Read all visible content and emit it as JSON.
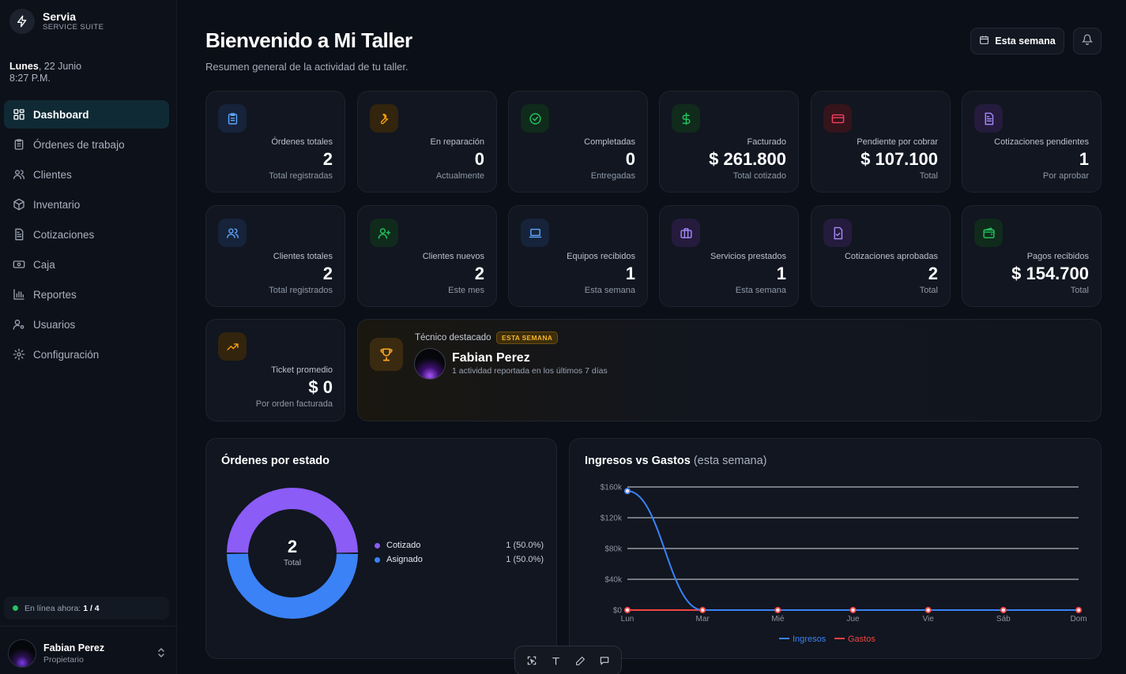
{
  "brand": {
    "name": "Servia",
    "subtitle": "SERVICE SUITE"
  },
  "date": {
    "day": "Lunes",
    "date": ", 22 Junio",
    "time": "8:27 P.M."
  },
  "nav": [
    {
      "label": "Dashboard",
      "icon": "grid-icon",
      "active": true
    },
    {
      "label": "Órdenes de trabajo",
      "icon": "clipboard-icon"
    },
    {
      "label": "Clientes",
      "icon": "users-icon"
    },
    {
      "label": "Inventario",
      "icon": "box-icon"
    },
    {
      "label": "Cotizaciones",
      "icon": "document-icon"
    },
    {
      "label": "Caja",
      "icon": "cash-icon"
    },
    {
      "label": "Reportes",
      "icon": "bar-chart-icon"
    },
    {
      "label": "Usuarios",
      "icon": "user-cog-icon"
    },
    {
      "label": "Configuración",
      "icon": "gear-icon"
    }
  ],
  "online": {
    "label": "En línea ahora:",
    "value": "1 / 4"
  },
  "user": {
    "name": "Fabian Perez",
    "role": "Propietario"
  },
  "header": {
    "title": "Bienvenido a Mi Taller",
    "subtitle": "Resumen general de la actividad de tu taller.",
    "week_button": "Esta semana"
  },
  "cards": [
    {
      "label": "Órdenes totales",
      "value": "2",
      "sub": "Total registradas",
      "icon": "clipboard-icon",
      "color": "#60a5fa",
      "bg": "#16233a"
    },
    {
      "label": "En reparación",
      "value": "0",
      "sub": "Actualmente",
      "icon": "wrench-icon",
      "color": "#f59e0b",
      "bg": "#33240e"
    },
    {
      "label": "Completadas",
      "value": "0",
      "sub": "Entregadas",
      "icon": "check-circle-icon",
      "color": "#22c55e",
      "bg": "#102a1c"
    },
    {
      "label": "Facturado",
      "value": "$ 261.800",
      "sub": "Total cotizado",
      "icon": "dollar-icon",
      "color": "#22c55e",
      "bg": "#102a1c"
    },
    {
      "label": "Pendiente por cobrar",
      "value": "$ 107.100",
      "sub": "Total",
      "icon": "credit-card-icon",
      "color": "#f43f5e",
      "bg": "#35141c"
    },
    {
      "label": "Cotizaciones pendientes",
      "value": "1",
      "sub": "Por aprobar",
      "icon": "document-icon",
      "color": "#a78bfa",
      "bg": "#241b3d"
    },
    {
      "label": "Clientes totales",
      "value": "2",
      "sub": "Total registrados",
      "icon": "users-icon",
      "color": "#60a5fa",
      "bg": "#16233a"
    },
    {
      "label": "Clientes nuevos",
      "value": "2",
      "sub": "Este mes",
      "icon": "user-plus-icon",
      "color": "#22c55e",
      "bg": "#102a1c"
    },
    {
      "label": "Equipos recibidos",
      "value": "1",
      "sub": "Esta semana",
      "icon": "laptop-icon",
      "color": "#60a5fa",
      "bg": "#16233a"
    },
    {
      "label": "Servicios prestados",
      "value": "1",
      "sub": "Esta semana",
      "icon": "briefcase-icon",
      "color": "#a78bfa",
      "bg": "#241b3d"
    },
    {
      "label": "Cotizaciones aprobadas",
      "value": "2",
      "sub": "Total",
      "icon": "document-check-icon",
      "color": "#a78bfa",
      "bg": "#241b3d"
    },
    {
      "label": "Pagos recibidos",
      "value": "$ 154.700",
      "sub": "Total",
      "icon": "wallet-icon",
      "color": "#22c55e",
      "bg": "#102a1c"
    },
    {
      "label": "Ticket promedio",
      "value": "$ 0",
      "sub": "Por orden facturada",
      "icon": "trending-up-icon",
      "color": "#f59e0b",
      "bg": "#33240e"
    }
  ],
  "featured": {
    "label": "Técnico destacado",
    "badge": "ESTA SEMANA",
    "name": "Fabian Perez",
    "desc": "1 actividad reportada en los últimos 7 días"
  },
  "orders_panel": {
    "title": "Órdenes por estado",
    "center_value": "2",
    "center_label": "Total"
  },
  "income_panel": {
    "title": "Ingresos vs Gastos",
    "title_suffix": "(esta semana)"
  },
  "chart_data": [
    {
      "type": "pie",
      "title": "Órdenes por estado",
      "categories": [
        "Cotizado",
        "Asignado"
      ],
      "values": [
        1,
        1
      ],
      "labels": [
        "1 (50.0%)",
        "1 (50.0%)"
      ],
      "colors": [
        "#8b5cf6",
        "#3b82f6"
      ],
      "legend": "right"
    },
    {
      "type": "line",
      "title": "Ingresos vs Gastos (esta semana)",
      "categories": [
        "Lun",
        "Mar",
        "Mié",
        "Jue",
        "Vie",
        "Sáb",
        "Dom"
      ],
      "yticks": [
        "$0",
        "$40k",
        "$80k",
        "$120k",
        "$160k"
      ],
      "ylim": [
        0,
        160000
      ],
      "grid": true,
      "legend": "bottom",
      "series": [
        {
          "name": "Ingresos",
          "color": "#3b82f6",
          "values": [
            154700,
            0,
            0,
            0,
            0,
            0,
            0
          ]
        },
        {
          "name": "Gastos",
          "color": "#ef4444",
          "values": [
            0,
            0,
            0,
            0,
            0,
            0,
            0
          ]
        }
      ]
    }
  ]
}
